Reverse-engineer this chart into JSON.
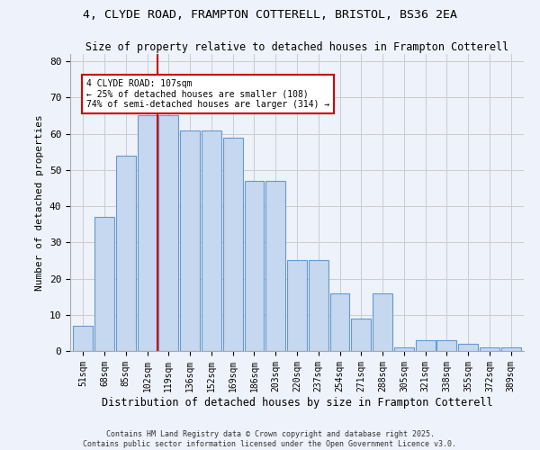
{
  "title_line1": "4, CLYDE ROAD, FRAMPTON COTTERELL, BRISTOL, BS36 2EA",
  "title_line2": "Size of property relative to detached houses in Frampton Cotterell",
  "xlabel": "Distribution of detached houses by size in Frampton Cotterell",
  "ylabel": "Number of detached properties",
  "categories": [
    "51sqm",
    "68sqm",
    "85sqm",
    "102sqm",
    "119sqm",
    "136sqm",
    "152sqm",
    "169sqm",
    "186sqm",
    "203sqm",
    "220sqm",
    "237sqm",
    "254sqm",
    "271sqm",
    "288sqm",
    "305sqm",
    "321sqm",
    "338sqm",
    "355sqm",
    "372sqm",
    "389sqm"
  ],
  "values": [
    7,
    37,
    54,
    65,
    65,
    61,
    61,
    59,
    47,
    47,
    25,
    25,
    16,
    9,
    16,
    1,
    3,
    3,
    2,
    1,
    1
  ],
  "bar_color": "#c5d8f0",
  "bar_edge_color": "#6699cc",
  "vline_x": 3.5,
  "vline_color": "#cc0000",
  "annotation_text": "4 CLYDE ROAD: 107sqm\n← 25% of detached houses are smaller (108)\n74% of semi-detached houses are larger (314) →",
  "annotation_box_color": "#ffffff",
  "annotation_box_edge_color": "#cc0000",
  "ylim": [
    0,
    82
  ],
  "yticks": [
    0,
    10,
    20,
    30,
    40,
    50,
    60,
    70,
    80
  ],
  "grid_color": "#cccccc",
  "bg_color": "#eef2fa",
  "footer_line1": "Contains HM Land Registry data © Crown copyright and database right 2025.",
  "footer_line2": "Contains public sector information licensed under the Open Government Licence v3.0."
}
